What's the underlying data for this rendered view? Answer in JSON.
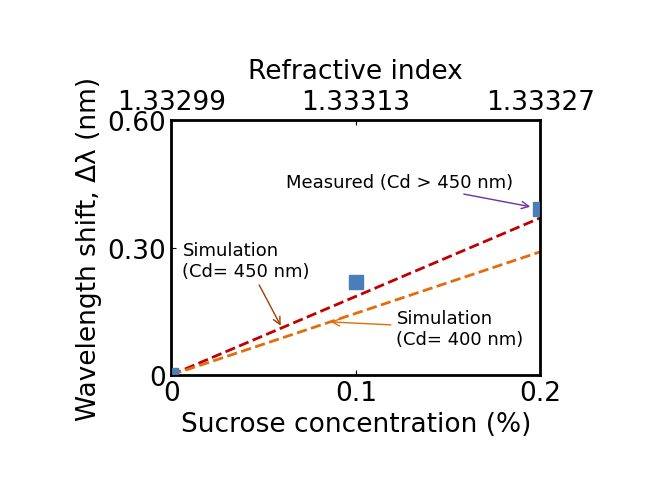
{
  "chart_data": {
    "type": "line",
    "x_label": "Sucrose concentration (%)",
    "y_label": "Wavelength shift, Δλ (nm)",
    "x2_label": "Refractive index",
    "xlim": [
      0,
      0.2
    ],
    "xticks": [
      0,
      0.1,
      0.2
    ],
    "ylim": [
      0,
      0.6
    ],
    "yticks": [
      0,
      {
        "value": 0.3,
        "label": "0.30"
      },
      {
        "value": 0.6,
        "label": "0.60"
      }
    ],
    "x2lim": [
      1.33299,
      1.33327
    ],
    "x2ticks": [
      1.33299,
      1.33313,
      1.33327
    ],
    "grid": false,
    "series": [
      {
        "name": "Measured (Cd > 450 nm)",
        "type": "scatter",
        "marker": "s",
        "color": "#4a7ebb",
        "x": [
          0,
          0.1,
          0.2
        ],
        "values": [
          0,
          0.22,
          0.39
        ]
      },
      {
        "name": "Simulation\n(Cd= 450 nm)",
        "type": "line",
        "line_style": "dashed",
        "color": "#c00000",
        "x": [
          0,
          0.2
        ],
        "values": [
          0,
          0.37
        ]
      },
      {
        "name": "Simulation\n(Cd= 400 nm)",
        "type": "line",
        "line_style": "dashed",
        "color": "#e46c0a",
        "x": [
          0,
          0.2
        ],
        "values": [
          0,
          0.29
        ]
      }
    ]
  }
}
